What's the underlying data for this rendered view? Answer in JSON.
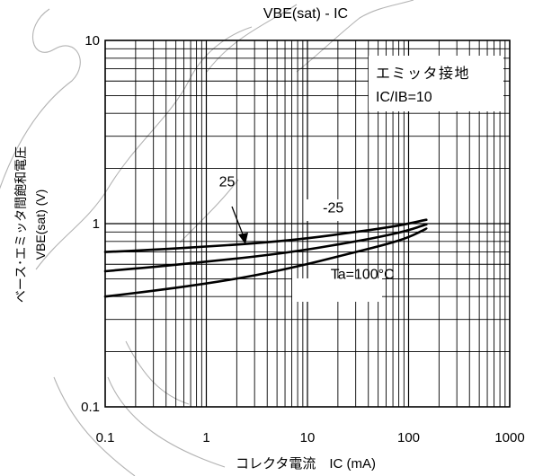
{
  "chart_data": {
    "type": "line",
    "title": "VBE(sat) - IC",
    "xlabel": "コレクタ電流　IC (mA)",
    "ylabel_line1": "ベース･エミッタ間飽和電圧",
    "ylabel_line2": "VBE(sat) (V)",
    "x_scale": "log",
    "y_scale": "log",
    "xlim": [
      0.1,
      1000
    ],
    "ylim": [
      0.1,
      10
    ],
    "x_ticks": [
      0.1,
      1,
      10,
      100,
      1000
    ],
    "x_tick_labels": [
      "0.1",
      "1",
      "10",
      "100",
      "1000"
    ],
    "y_ticks": [
      0.1,
      1,
      10
    ],
    "y_tick_labels": [
      "0.1",
      "1",
      "10"
    ],
    "grid": true,
    "legend_box": {
      "line1": "エミッタ接地",
      "line2": "IC/IB=10"
    },
    "series": [
      {
        "name": "25",
        "x": [
          0.1,
          0.3,
          1,
          3,
          10,
          30,
          60,
          100,
          150
        ],
        "y": [
          0.7,
          0.72,
          0.75,
          0.78,
          0.83,
          0.9,
          0.95,
          1.0,
          1.05
        ]
      },
      {
        "name": "-25",
        "x": [
          0.1,
          0.3,
          1,
          3,
          10,
          30,
          60,
          100,
          150
        ],
        "y": [
          0.55,
          0.58,
          0.62,
          0.66,
          0.72,
          0.8,
          0.86,
          0.92,
          0.99
        ]
      },
      {
        "name": "Ta=100°C",
        "x": [
          0.1,
          0.3,
          1,
          3,
          10,
          30,
          60,
          100,
          150
        ],
        "y": [
          0.4,
          0.43,
          0.47,
          0.52,
          0.6,
          0.7,
          0.77,
          0.84,
          0.94
        ]
      }
    ],
    "annotations": [
      {
        "text": "25",
        "x": 1.6,
        "y": 1.6
      },
      {
        "text": "-25",
        "x": 18,
        "y": 1.15
      },
      {
        "text": "Ta=100°C",
        "x": 35,
        "y": 0.5
      }
    ]
  }
}
